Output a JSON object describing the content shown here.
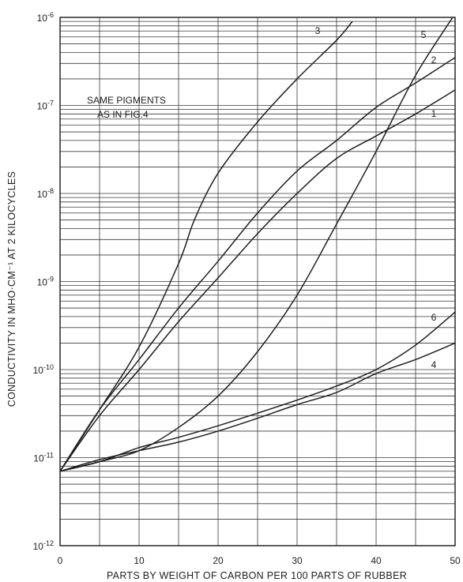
{
  "chart_data": {
    "type": "line",
    "title": "",
    "xlabel": "PARTS BY WEIGHT OF CARBON PER 100 PARTS OF RUBBER",
    "ylabel": "CONDUCTIVITY IN MHO·CM⁻¹ AT 2 KILOCYCLES",
    "xlim": [
      0,
      50
    ],
    "ylim": [
      1e-12,
      1e-06
    ],
    "yscale": "log",
    "grid": true,
    "x_ticks": [
      0,
      10,
      20,
      30,
      40,
      50
    ],
    "x_tick_labels": [
      "0",
      "10",
      "20",
      "30",
      "40",
      "50"
    ],
    "y_ticks": [
      1e-12,
      1e-11,
      1e-10,
      1e-09,
      1e-08,
      1e-07,
      1e-06
    ],
    "y_tick_labels": [
      "10",
      "10",
      "10",
      "10",
      "10",
      "10",
      "10"
    ],
    "y_tick_exponents": [
      "-12",
      "-11",
      "-10",
      "-9",
      "-8",
      "-7",
      "-6"
    ],
    "annotation": [
      "SAME PIGMENTS",
      "AS IN FIG.4"
    ],
    "series": [
      {
        "name": "3",
        "x": [
          0,
          5,
          10,
          15,
          17,
          20,
          25,
          30,
          35,
          37
        ],
        "y": [
          7e-12,
          3.5e-11,
          1.8e-10,
          1.6e-09,
          5e-09,
          1.7e-08,
          6.5e-08,
          2e-07,
          5.5e-07,
          9e-07
        ]
      },
      {
        "name": "5",
        "x": [
          0,
          5,
          10,
          15,
          20,
          25,
          30,
          35,
          40,
          45,
          50
        ],
        "y": [
          7e-12,
          9e-12,
          1.2e-11,
          2.2e-11,
          5e-11,
          1.6e-10,
          7e-10,
          4.5e-09,
          3e-08,
          2.2e-07,
          1.1e-06
        ]
      },
      {
        "name": "2",
        "x": [
          0,
          5,
          10,
          15,
          20,
          25,
          30,
          35,
          40,
          45,
          50
        ],
        "y": [
          7e-12,
          3.5e-11,
          1.3e-10,
          5e-10,
          1.7e-09,
          6e-09,
          1.8e-08,
          4e-08,
          9.5e-08,
          1.8e-07,
          3.5e-07
        ]
      },
      {
        "name": "1",
        "x": [
          0,
          5,
          10,
          15,
          20,
          25,
          30,
          35,
          40,
          45,
          50
        ],
        "y": [
          7e-12,
          3e-11,
          1e-10,
          3.5e-10,
          1.1e-09,
          3.5e-09,
          1e-08,
          2.5e-08,
          4.5e-08,
          8e-08,
          1.5e-07
        ]
      },
      {
        "name": "6",
        "x": [
          0,
          5,
          10,
          15,
          20,
          25,
          30,
          35,
          40,
          45,
          50
        ],
        "y": [
          7e-12,
          9e-12,
          1.3e-11,
          1.7e-11,
          2.3e-11,
          3.2e-11,
          4.5e-11,
          6.5e-11,
          1e-10,
          1.9e-10,
          4.5e-10
        ]
      },
      {
        "name": "4",
        "x": [
          0,
          5,
          10,
          15,
          20,
          25,
          30,
          35,
          40,
          45,
          50
        ],
        "y": [
          7e-12,
          9.5e-12,
          1.2e-11,
          1.5e-11,
          2e-11,
          2.8e-11,
          4e-11,
          5.5e-11,
          9e-11,
          1.3e-10,
          2e-10
        ]
      }
    ]
  }
}
